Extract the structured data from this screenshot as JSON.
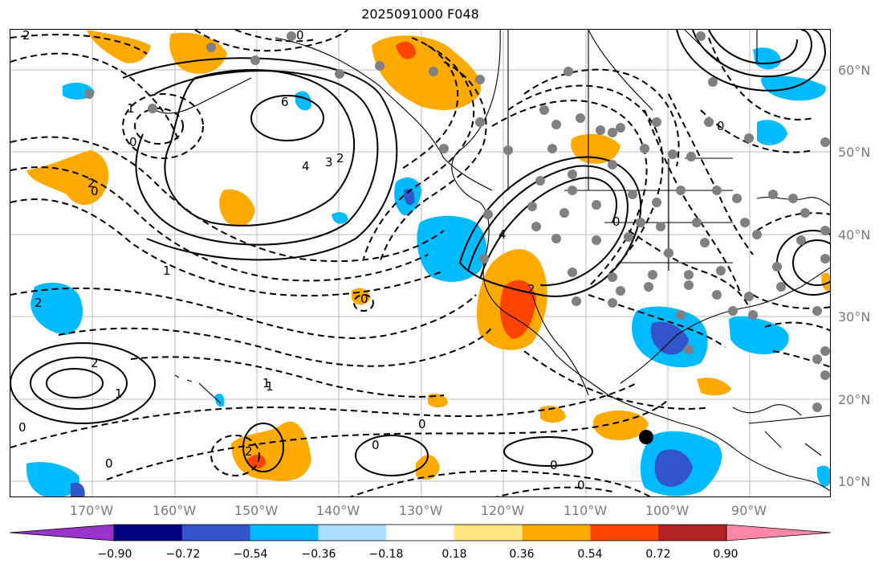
{
  "title": "2025091000 F048",
  "latitude_labels": [
    "60°N",
    "50°N",
    "40°N",
    "30°N",
    "20°N",
    "10°N"
  ],
  "longitude_labels": [
    "170°W",
    "160°W",
    "150°W",
    "140°W",
    "130°W",
    "120°W",
    "110°W",
    "100°W",
    "90°W"
  ],
  "colorbar": {
    "tick_labels": [
      "−0.90",
      "−0.72",
      "−0.54",
      "−0.36",
      "−0.18",
      "0.18",
      "0.36",
      "0.54",
      "0.72",
      "0.90"
    ],
    "colors": [
      "#9933cc",
      "#000080",
      "#3355cc",
      "#00bbff",
      "#aaddff",
      "#ffffff",
      "#ffe680",
      "#ffaa00",
      "#ff4400",
      "#b22222",
      "#ff88aa"
    ]
  },
  "contour_labels": [
    "2",
    "1",
    "0",
    "6",
    "4",
    "3",
    "2",
    "0",
    "1",
    "2",
    "0",
    "1",
    "4",
    "2",
    "0",
    "2",
    "0",
    "0",
    "0",
    "2",
    "1",
    "0",
    "2",
    "0",
    "0",
    "0",
    "0",
    "1"
  ],
  "colors": {
    "positive_orange": "#ffaa00",
    "positive_red": "#ff4400",
    "negative_blue": "#00bbff",
    "negative_dark_blue": "#3355cc",
    "station_dot": "#808080",
    "grid": "#bbbbbb"
  }
}
